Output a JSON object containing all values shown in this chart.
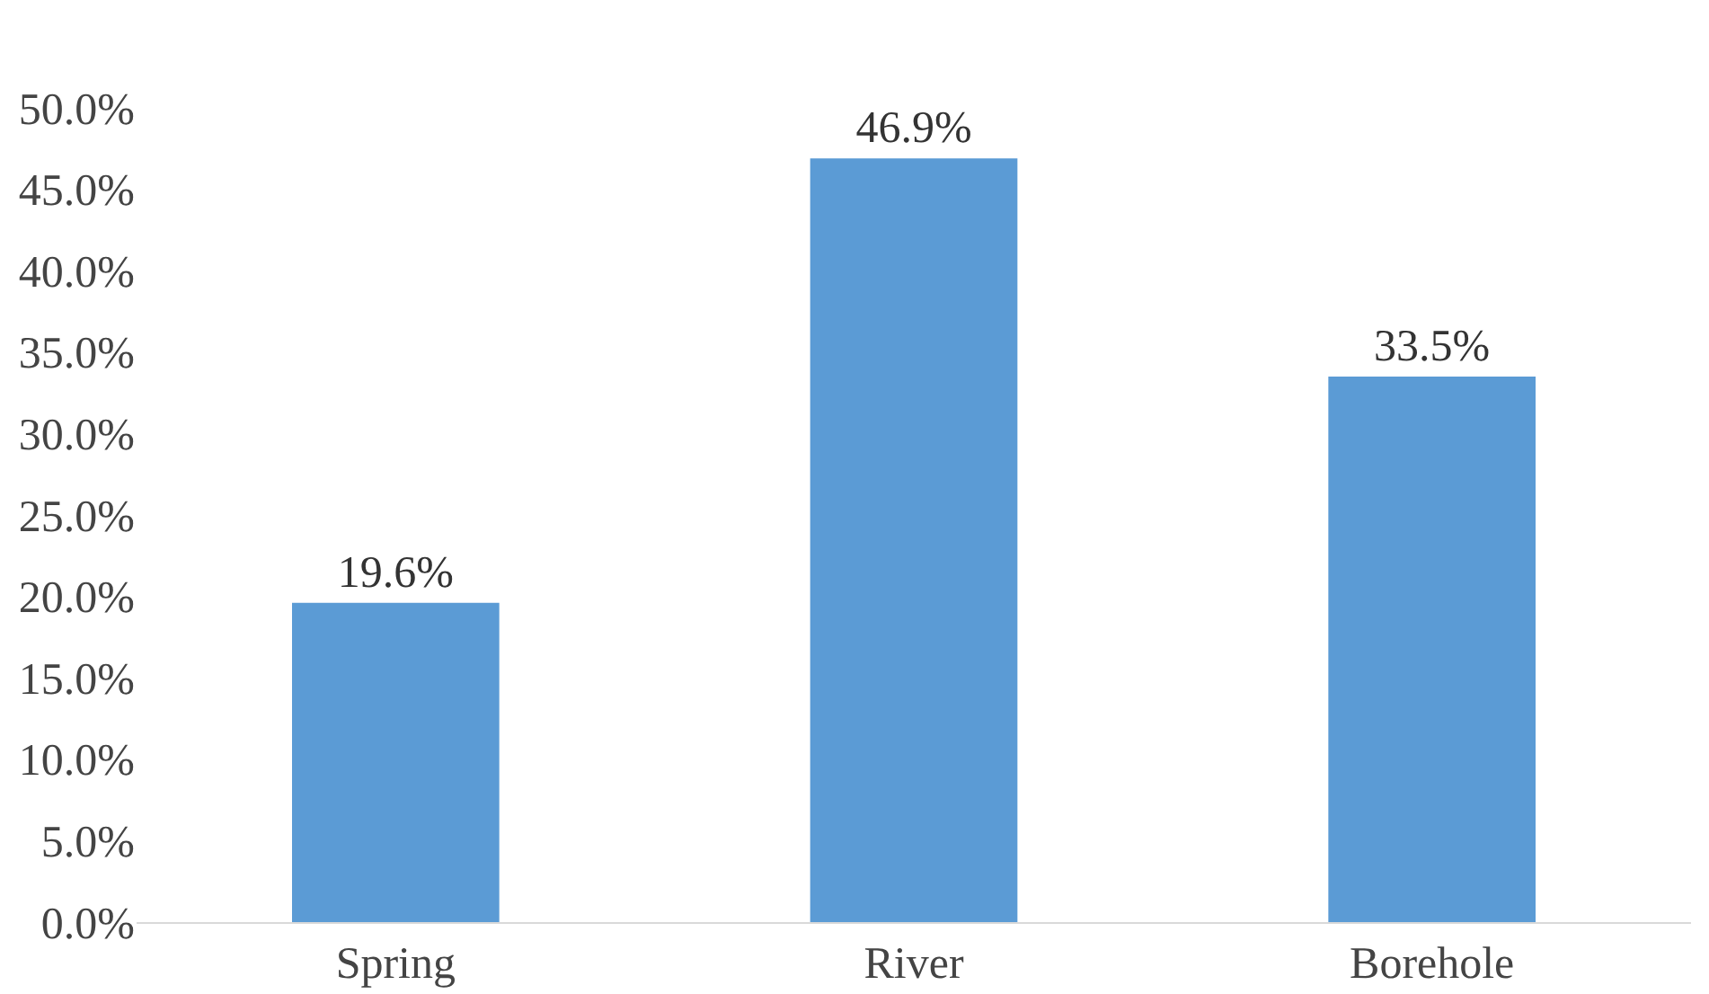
{
  "chart_data": {
    "type": "bar",
    "categories": [
      "Spring",
      "River",
      "Borehole"
    ],
    "values": [
      19.6,
      46.9,
      33.5
    ],
    "value_labels": [
      "19.6%",
      "46.9%",
      "33.5%"
    ],
    "color": "#5b9bd5",
    "ylim": [
      0,
      50
    ],
    "yticks": [
      {
        "value": 0,
        "label": "0.0%"
      },
      {
        "value": 5,
        "label": "5.0%"
      },
      {
        "value": 10,
        "label": "10.0%"
      },
      {
        "value": 15,
        "label": "15.0%"
      },
      {
        "value": 20,
        "label": "20.0%"
      },
      {
        "value": 25,
        "label": "25.0%"
      },
      {
        "value": 30,
        "label": "30.0%"
      },
      {
        "value": 35,
        "label": "35.0%"
      },
      {
        "value": 40,
        "label": "40.0%"
      },
      {
        "value": 45,
        "label": "45.0%"
      },
      {
        "value": 50,
        "label": "50.0%"
      }
    ],
    "grid": false
  }
}
